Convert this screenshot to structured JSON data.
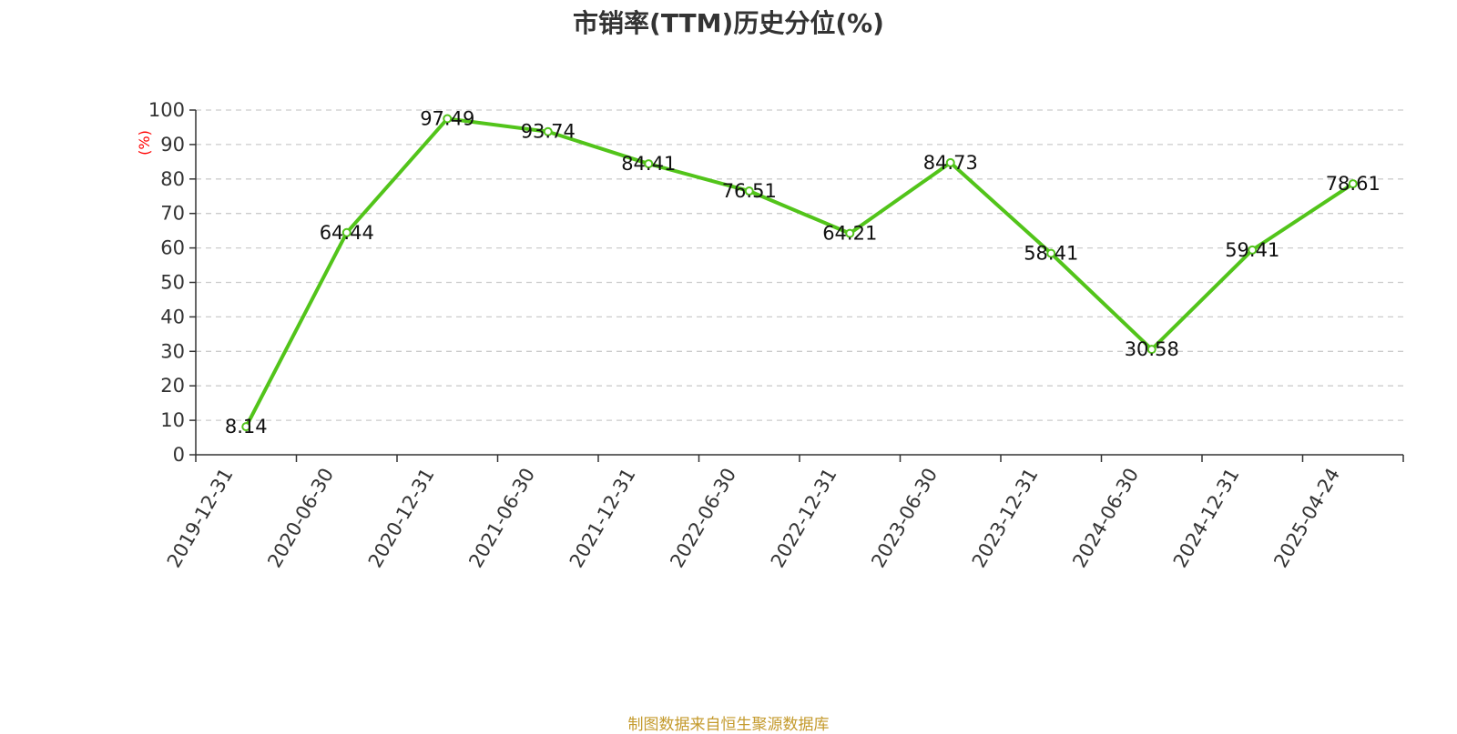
{
  "chart_data": {
    "type": "line",
    "title": "市销率(TTM)历史分位(%)",
    "ylabel": "(%)",
    "xlabel": "",
    "categories": [
      "2019-12-31",
      "2020-06-30",
      "2020-12-31",
      "2021-06-30",
      "2021-12-31",
      "2022-06-30",
      "2022-12-31",
      "2023-06-30",
      "2023-12-31",
      "2024-06-30",
      "2024-12-31",
      "2025-04-24"
    ],
    "series": [
      {
        "values": [
          8.14,
          64.44,
          97.49,
          93.74,
          84.41,
          76.51,
          64.21,
          84.73,
          58.41,
          30.58,
          59.41,
          78.61
        ]
      }
    ],
    "y_ticks": [
      0,
      10,
      20,
      30,
      40,
      50,
      60,
      70,
      80,
      90,
      100
    ],
    "ylim": [
      0,
      100
    ],
    "grid": true,
    "line_color": "#52c41a"
  },
  "source_note": "制图数据来自恒生聚源数据库"
}
